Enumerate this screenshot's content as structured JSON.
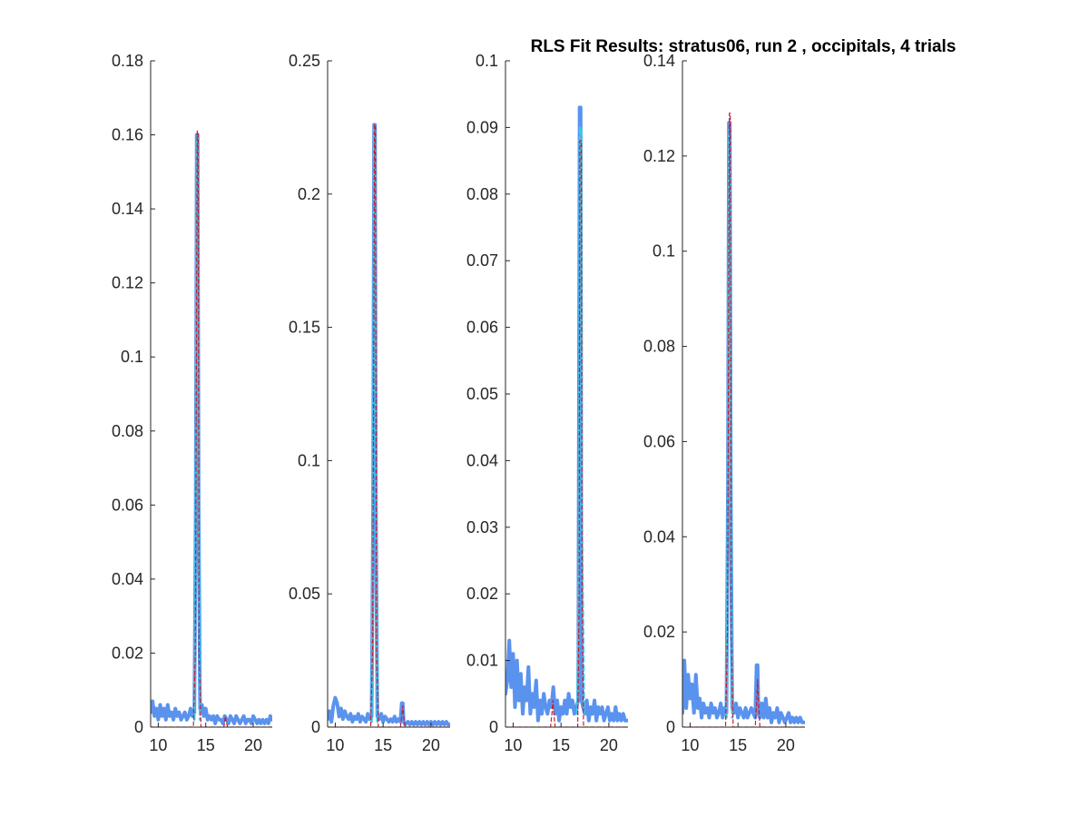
{
  "figure": {
    "title": "RLS Fit Results: stratus06, run 2 , occipitals, 4 trials"
  },
  "colors": {
    "data": "#5a93ee",
    "fit_light": "#3ec6e6",
    "fit_dark": "#c42030",
    "axis": "#262626"
  },
  "chart_data": [
    {
      "type": "line",
      "xlim": [
        9.2,
        22
      ],
      "ylim": [
        0,
        0.18
      ],
      "xticks": [
        10,
        15,
        20
      ],
      "yticks": [
        0,
        0.02,
        0.04,
        0.06,
        0.08,
        0.1,
        0.12,
        0.14,
        0.16,
        0.18
      ],
      "ytick_labels": [
        "0",
        "0.02",
        "0.04",
        "0.06",
        "0.08",
        "0.1",
        "0.12",
        "0.14",
        "0.16",
        "0.18"
      ],
      "xtick_labels": [
        "10",
        "15",
        "20"
      ],
      "series": [
        {
          "role": "data",
          "x": [
            9.2,
            9.4,
            9.6,
            9.8,
            10,
            10.2,
            10.4,
            10.6,
            10.8,
            11,
            11.2,
            11.4,
            11.6,
            11.8,
            12,
            12.2,
            12.4,
            12.6,
            12.8,
            13,
            13.2,
            13.4,
            13.6,
            13.8,
            13.95,
            14.05,
            14.15,
            14.25,
            14.4,
            14.6,
            14.8,
            15,
            15.2,
            15.4,
            15.6,
            15.8,
            16,
            16.2,
            16.4,
            16.6,
            16.8,
            17,
            17.2,
            17.4,
            17.6,
            17.8,
            18,
            18.2,
            18.4,
            18.6,
            18.8,
            19,
            19.2,
            19.4,
            19.6,
            19.8,
            20,
            20.2,
            20.4,
            20.6,
            20.8,
            21,
            21.2,
            21.4,
            21.6,
            21.8,
            22
          ],
          "y": [
            0.004,
            0.007,
            0.003,
            0.005,
            0.002,
            0.006,
            0.003,
            0.005,
            0.002,
            0.006,
            0.003,
            0.004,
            0.002,
            0.005,
            0.003,
            0.004,
            0.002,
            0.003,
            0.004,
            0.002,
            0.003,
            0.005,
            0.003,
            0.004,
            0.06,
            0.16,
            0.16,
            0.06,
            0.005,
            0.006,
            0.003,
            0.005,
            0.002,
            0.003,
            0.002,
            0.003,
            0.001,
            0.003,
            0.002,
            0.002,
            0.001,
            0.003,
            0.002,
            0.001,
            0.003,
            0.002,
            0.001,
            0.003,
            0.002,
            0.001,
            0.002,
            0.003,
            0.001,
            0.002,
            0.002,
            0.001,
            0.003,
            0.002,
            0.001,
            0.002,
            0.001,
            0.002,
            0.001,
            0.002,
            0.001,
            0.003,
            0.002
          ]
        },
        {
          "role": "fit-light",
          "x": [
            13.8,
            13.95,
            14.05,
            14.15,
            14.25,
            14.4
          ],
          "y": [
            0.002,
            0.06,
            0.159,
            0.159,
            0.06,
            0.002
          ]
        },
        {
          "role": "fit-dark",
          "x": [
            9.2,
            13.7,
            13.9,
            14.0,
            14.1,
            14.2,
            14.3,
            14.5,
            16.9,
            17.0,
            17.05,
            17.15,
            17.3,
            22
          ],
          "y": [
            0,
            0,
            0.02,
            0.09,
            0.161,
            0.161,
            0.02,
            0,
            0,
            0.0015,
            0.003,
            0.0015,
            0,
            0
          ]
        }
      ]
    },
    {
      "type": "line",
      "xlim": [
        9.2,
        22
      ],
      "ylim": [
        0,
        0.25
      ],
      "xticks": [
        10,
        15,
        20
      ],
      "yticks": [
        0,
        0.05,
        0.1,
        0.15,
        0.2,
        0.25
      ],
      "ytick_labels": [
        "0",
        "0.05",
        "0.1",
        "0.15",
        "0.2",
        "0.25"
      ],
      "xtick_labels": [
        "10",
        "15",
        "20"
      ],
      "series": [
        {
          "role": "data",
          "x": [
            9.2,
            9.4,
            9.6,
            9.8,
            10,
            10.2,
            10.4,
            10.6,
            10.8,
            11,
            11.2,
            11.4,
            11.6,
            11.8,
            12,
            12.2,
            12.4,
            12.6,
            12.8,
            13,
            13.2,
            13.4,
            13.6,
            13.8,
            13.95,
            14.05,
            14.15,
            14.25,
            14.4,
            14.6,
            14.8,
            15,
            15.2,
            15.4,
            15.6,
            15.8,
            16,
            16.2,
            16.4,
            16.6,
            16.8,
            16.95,
            17.05,
            17.15,
            17.3,
            17.6,
            17.8,
            18,
            18.2,
            18.4,
            18.6,
            18.8,
            19,
            19.2,
            19.4,
            19.6,
            19.8,
            20,
            20.2,
            20.4,
            20.6,
            20.8,
            21,
            21.2,
            21.4,
            21.6,
            21.8,
            22
          ],
          "y": [
            0.003,
            0.006,
            0.002,
            0.008,
            0.011,
            0.009,
            0.004,
            0.007,
            0.003,
            0.006,
            0.004,
            0.003,
            0.005,
            0.002,
            0.004,
            0.003,
            0.005,
            0.002,
            0.004,
            0.003,
            0.002,
            0.005,
            0.003,
            0.004,
            0.08,
            0.226,
            0.226,
            0.08,
            0.004,
            0.003,
            0.005,
            0.002,
            0.004,
            0.003,
            0.002,
            0.003,
            0.002,
            0.004,
            0.002,
            0.003,
            0.002,
            0.009,
            0.009,
            0.002,
            0.001,
            0.002,
            0.001,
            0.002,
            0.001,
            0.002,
            0.001,
            0.002,
            0.001,
            0.002,
            0.001,
            0.002,
            0.001,
            0.002,
            0.001,
            0.002,
            0.001,
            0.002,
            0.001,
            0.002,
            0.001,
            0.002,
            0.001,
            0.001
          ]
        },
        {
          "role": "fit-light",
          "x": [
            13.8,
            13.95,
            14.05,
            14.15,
            14.25,
            14.4
          ],
          "y": [
            0.002,
            0.08,
            0.224,
            0.224,
            0.08,
            0.002
          ]
        },
        {
          "role": "fit-dark",
          "x": [
            9.2,
            13.7,
            13.9,
            14.0,
            14.1,
            14.2,
            14.3,
            14.5,
            16.8,
            16.95,
            17.05,
            17.15,
            17.3,
            22
          ],
          "y": [
            0,
            0,
            0.03,
            0.12,
            0.226,
            0.226,
            0.03,
            0,
            0,
            0.004,
            0.008,
            0.004,
            0,
            0
          ]
        }
      ]
    },
    {
      "type": "line",
      "xlim": [
        9.2,
        22
      ],
      "ylim": [
        0,
        0.1
      ],
      "xticks": [
        10,
        15,
        20
      ],
      "yticks": [
        0,
        0.01,
        0.02,
        0.03,
        0.04,
        0.05,
        0.06,
        0.07,
        0.08,
        0.09,
        0.1
      ],
      "ytick_labels": [
        "0",
        "0.01",
        "0.02",
        "0.03",
        "0.04",
        "0.05",
        "0.06",
        "0.07",
        "0.08",
        "0.09",
        "0.1"
      ],
      "xtick_labels": [
        "10",
        "15",
        "20"
      ],
      "series": [
        {
          "role": "data",
          "x": [
            9.2,
            9.4,
            9.6,
            9.8,
            10,
            10.2,
            10.4,
            10.6,
            10.8,
            11,
            11.2,
            11.4,
            11.6,
            11.8,
            12,
            12.2,
            12.4,
            12.6,
            12.8,
            13,
            13.2,
            13.4,
            13.6,
            13.8,
            14.0,
            14.2,
            14.4,
            14.6,
            14.8,
            15,
            15.2,
            15.4,
            15.6,
            15.8,
            16,
            16.2,
            16.4,
            16.6,
            16.8,
            16.95,
            17.05,
            17.15,
            17.3,
            17.5,
            17.7,
            17.9,
            18.1,
            18.3,
            18.5,
            18.7,
            18.9,
            19.1,
            19.3,
            19.5,
            19.7,
            19.9,
            20.1,
            20.3,
            20.5,
            20.7,
            20.9,
            21.1,
            21.3,
            21.5,
            21.7,
            22
          ],
          "y": [
            0.005,
            0.007,
            0.013,
            0.006,
            0.011,
            0.003,
            0.01,
            0.004,
            0.008,
            0.002,
            0.006,
            0.004,
            0.009,
            0.002,
            0.005,
            0.003,
            0.007,
            0.001,
            0.004,
            0.002,
            0.005,
            0.003,
            0.002,
            0.004,
            0.003,
            0.006,
            0.002,
            0.004,
            0.001,
            0.003,
            0.002,
            0.004,
            0.002,
            0.005,
            0.003,
            0.004,
            0.002,
            0.003,
            0.004,
            0.093,
            0.093,
            0.004,
            0.003,
            0.002,
            0.004,
            0.001,
            0.003,
            0.002,
            0.004,
            0.001,
            0.003,
            0.002,
            0.003,
            0.001,
            0.002,
            0.003,
            0.001,
            0.002,
            0.001,
            0.003,
            0.001,
            0.002,
            0.001,
            0.002,
            0.001,
            0.001
          ]
        },
        {
          "role": "fit-light",
          "x": [
            16.7,
            16.9,
            16.97,
            17.05,
            17.13,
            17.2,
            17.4
          ],
          "y": [
            0.002,
            0.03,
            0.09,
            0.09,
            0.09,
            0.03,
            0.002
          ]
        },
        {
          "role": "fit-dark",
          "x": [
            9.2,
            13.9,
            14.05,
            14.15,
            14.25,
            14.4,
            16.75,
            16.9,
            16.97,
            17.05,
            17.13,
            17.2,
            17.35,
            22
          ],
          "y": [
            0,
            0,
            0.002,
            0.004,
            0.002,
            0,
            0,
            0.02,
            0.088,
            0.088,
            0.088,
            0.02,
            0,
            0
          ]
        }
      ]
    },
    {
      "type": "line",
      "xlim": [
        9.2,
        22
      ],
      "ylim": [
        0,
        0.14
      ],
      "xticks": [
        10,
        15,
        20
      ],
      "yticks": [
        0,
        0.02,
        0.04,
        0.06,
        0.08,
        0.1,
        0.12,
        0.14
      ],
      "ytick_labels": [
        "0",
        "0.02",
        "0.04",
        "0.06",
        "0.08",
        "0.1",
        "0.12",
        "0.14"
      ],
      "xtick_labels": [
        "10",
        "15",
        "20"
      ],
      "series": [
        {
          "role": "data",
          "x": [
            9.2,
            9.4,
            9.6,
            9.8,
            10,
            10.2,
            10.4,
            10.6,
            10.8,
            11,
            11.2,
            11.4,
            11.6,
            11.8,
            12,
            12.2,
            12.4,
            12.6,
            12.8,
            13,
            13.2,
            13.4,
            13.6,
            13.8,
            13.95,
            14.05,
            14.15,
            14.25,
            14.4,
            14.6,
            14.8,
            15,
            15.2,
            15.4,
            15.6,
            15.8,
            16,
            16.2,
            16.4,
            16.6,
            16.8,
            16.95,
            17.05,
            17.15,
            17.3,
            17.5,
            17.7,
            17.9,
            18.1,
            18.3,
            18.5,
            18.7,
            18.9,
            19.1,
            19.3,
            19.5,
            19.7,
            19.9,
            20.1,
            20.3,
            20.5,
            20.7,
            20.9,
            21.1,
            21.3,
            21.5,
            21.7,
            22
          ],
          "y": [
            0.003,
            0.014,
            0.004,
            0.011,
            0.006,
            0.009,
            0.003,
            0.011,
            0.004,
            0.006,
            0.002,
            0.005,
            0.003,
            0.004,
            0.002,
            0.005,
            0.003,
            0.004,
            0.002,
            0.003,
            0.005,
            0.002,
            0.004,
            0.003,
            0.05,
            0.127,
            0.127,
            0.05,
            0.004,
            0.003,
            0.005,
            0.002,
            0.004,
            0.003,
            0.002,
            0.004,
            0.002,
            0.003,
            0.004,
            0.003,
            0.002,
            0.013,
            0.013,
            0.003,
            0.002,
            0.005,
            0.002,
            0.006,
            0.002,
            0.004,
            0.001,
            0.003,
            0.002,
            0.004,
            0.001,
            0.003,
            0.002,
            0.001,
            0.002,
            0.003,
            0.001,
            0.002,
            0.001,
            0.002,
            0.001,
            0.002,
            0.001,
            0.001
          ]
        },
        {
          "role": "fit-light",
          "x": [
            13.8,
            13.95,
            14.05,
            14.15,
            14.25,
            14.4
          ],
          "y": [
            0.002,
            0.05,
            0.125,
            0.125,
            0.05,
            0.002
          ]
        },
        {
          "role": "fit-dark",
          "x": [
            9.2,
            13.7,
            13.9,
            14.0,
            14.1,
            14.2,
            14.3,
            14.5,
            16.8,
            16.95,
            17.05,
            17.15,
            17.3,
            22
          ],
          "y": [
            0,
            0,
            0.02,
            0.07,
            0.129,
            0.129,
            0.02,
            0,
            0,
            0.005,
            0.01,
            0.005,
            0,
            0
          ]
        }
      ]
    }
  ]
}
